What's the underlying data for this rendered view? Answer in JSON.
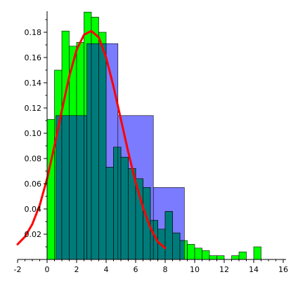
{
  "chart_data": {
    "type": "bar",
    "title": "",
    "xlabel": "",
    "ylabel": "",
    "xlim": [
      -2,
      16
    ],
    "ylim": [
      0,
      0.195
    ],
    "grid": false,
    "legend": "none",
    "x_ticks": [
      "-2",
      "0",
      "2",
      "4",
      "6",
      "8",
      "10",
      "12",
      "14",
      "16"
    ],
    "y_ticks": [
      "0.02",
      "0.04",
      "0.06",
      "0.08",
      "0.10",
      "0.12",
      "0.14",
      "0.16",
      "0.18"
    ],
    "colors": {
      "green_bars": "#00ff00",
      "blue_bars": "#7b7bff",
      "overlap": "#007b7b",
      "curve": "#ff0000",
      "bar_edge": "#000000"
    },
    "series": [
      {
        "type": "histogram",
        "bin_width": 0.5,
        "bins": [
          {
            "x0": 0.0,
            "x1": 0.5,
            "value": 0.111
          },
          {
            "x0": 0.5,
            "x1": 1.0,
            "value": 0.15
          },
          {
            "x0": 1.0,
            "x1": 1.5,
            "value": 0.181
          },
          {
            "x0": 1.5,
            "x1": 2.0,
            "value": 0.169
          },
          {
            "x0": 2.0,
            "x1": 2.5,
            "value": 0.172
          },
          {
            "x0": 2.5,
            "x1": 3.0,
            "value": 0.196
          },
          {
            "x0": 3.0,
            "x1": 3.5,
            "value": 0.192
          },
          {
            "x0": 3.5,
            "x1": 4.0,
            "value": 0.18
          },
          {
            "x0": 4.0,
            "x1": 4.5,
            "value": 0.073
          },
          {
            "x0": 4.5,
            "x1": 5.0,
            "value": 0.089
          },
          {
            "x0": 5.0,
            "x1": 5.5,
            "value": 0.081
          },
          {
            "x0": 5.5,
            "x1": 6.0,
            "value": 0.072
          },
          {
            "x0": 6.0,
            "x1": 6.5,
            "value": 0.064
          },
          {
            "x0": 6.5,
            "x1": 7.0,
            "value": 0.057
          },
          {
            "x0": 7.0,
            "x1": 7.5,
            "value": 0.031
          },
          {
            "x0": 7.5,
            "x1": 8.0,
            "value": 0.024
          },
          {
            "x0": 8.0,
            "x1": 8.5,
            "value": 0.038
          },
          {
            "x0": 8.5,
            "x1": 9.0,
            "value": 0.021
          },
          {
            "x0": 9.0,
            "x1": 9.5,
            "value": 0.015
          },
          {
            "x0": 9.5,
            "x1": 10.0,
            "value": 0.012
          },
          {
            "x0": 10.0,
            "x1": 10.5,
            "value": 0.009
          },
          {
            "x0": 10.5,
            "x1": 11.0,
            "value": 0.007
          },
          {
            "x0": 11.0,
            "x1": 11.5,
            "value": 0.003
          },
          {
            "x0": 11.5,
            "x1": 12.0,
            "value": 0.003
          },
          {
            "x0": 12.0,
            "x1": 12.5,
            "value": 0.0
          },
          {
            "x0": 12.5,
            "x1": 13.0,
            "value": 0.003
          },
          {
            "x0": 13.0,
            "x1": 13.5,
            "value": 0.006
          },
          {
            "x0": 13.5,
            "x1": 14.0,
            "value": 0.0
          },
          {
            "x0": 14.0,
            "x1": 14.5,
            "value": 0.01
          }
        ]
      },
      {
        "type": "histogram",
        "bins": [
          {
            "x0": 0.6,
            "x1": 2.7,
            "value": 0.114
          },
          {
            "x0": 2.7,
            "x1": 4.8,
            "value": 0.171
          },
          {
            "x0": 4.8,
            "x1": 7.2,
            "value": 0.114
          },
          {
            "x0": 7.2,
            "x1": 9.3,
            "value": 0.057
          }
        ]
      },
      {
        "type": "line",
        "x": [
          -2.0,
          -1.5,
          -1.0,
          -0.5,
          0.0,
          0.5,
          1.0,
          1.5,
          2.0,
          2.5,
          3.0,
          3.5,
          4.0,
          4.5,
          5.0,
          5.5,
          6.0,
          6.5,
          7.0,
          7.5,
          8.0
        ],
        "y": [
          0.012,
          0.018,
          0.028,
          0.043,
          0.064,
          0.09,
          0.118,
          0.145,
          0.166,
          0.178,
          0.181,
          0.176,
          0.16,
          0.137,
          0.111,
          0.085,
          0.061,
          0.041,
          0.025,
          0.014,
          0.009
        ]
      }
    ]
  }
}
